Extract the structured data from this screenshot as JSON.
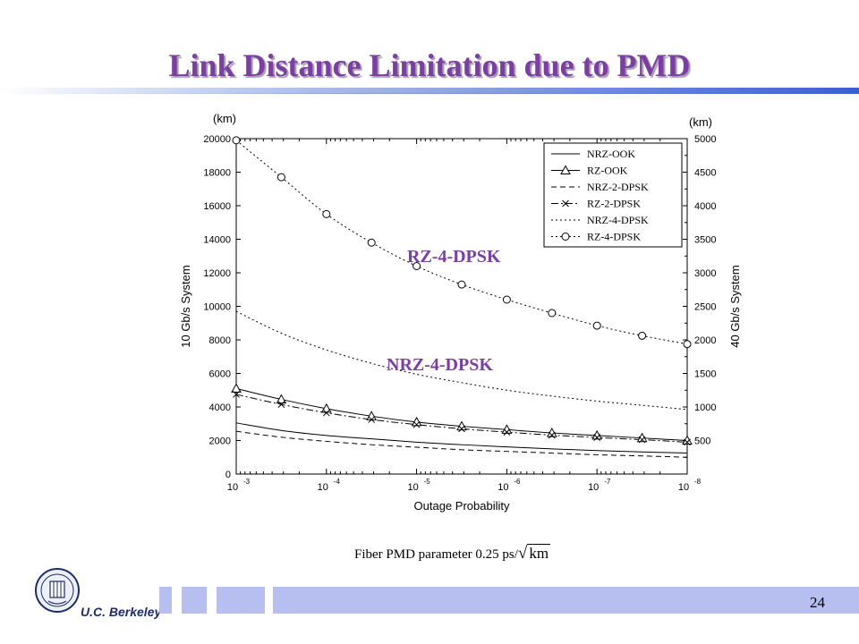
{
  "slide": {
    "title": "Link Distance Limitation due to PMD",
    "caption": "Fiber PMD parameter 0.25 ps/",
    "caption_sqrt": "km",
    "page_number": "24",
    "logo_text": "U.C. Berkeley"
  },
  "colors": {
    "title": "#7a3f9f",
    "accent": "#3a5fd0",
    "footer": "#b7bef0",
    "line": "#000000"
  },
  "chart_data": {
    "type": "line",
    "xlabel": "Outage Probability",
    "ylabel_left": "10 Gb/s System",
    "ylabel_right": "40 Gb/s System",
    "unit_left": "(km)",
    "unit_right": "(km)",
    "x_scale": "log",
    "x_exponents": [
      -3,
      -4,
      -5,
      -6,
      -7,
      -8
    ],
    "x_tick_base": "10",
    "ylim_left": [
      0,
      20000
    ],
    "ylim_right": [
      0,
      5000
    ],
    "y_ticks_left": [
      0,
      2000,
      4000,
      6000,
      8000,
      10000,
      12000,
      14000,
      16000,
      18000,
      20000
    ],
    "y_ticks_right": [
      500,
      1000,
      1500,
      2000,
      2500,
      3000,
      3500,
      4000,
      4500,
      5000
    ],
    "legend_position": "top-right",
    "x_exp": [
      -3,
      -3.5,
      -4,
      -4.5,
      -5,
      -5.5,
      -6,
      -6.5,
      -7,
      -7.5,
      -8
    ],
    "series": [
      {
        "name": "NRZ-OOK",
        "style": "solid",
        "marker": "none",
        "values": [
          3050,
          2600,
          2300,
          2100,
          1900,
          1750,
          1620,
          1500,
          1400,
          1320,
          1250
        ]
      },
      {
        "name": "RZ-OOK",
        "style": "solid",
        "marker": "triangle",
        "values": [
          5100,
          4450,
          3900,
          3450,
          3100,
          2850,
          2650,
          2450,
          2300,
          2150,
          2000
        ]
      },
      {
        "name": "NRZ-2-DPSK",
        "style": "dashed",
        "marker": "none",
        "values": [
          2550,
          2200,
          1950,
          1750,
          1600,
          1450,
          1350,
          1250,
          1150,
          1080,
          1000
        ]
      },
      {
        "name": "RZ-2-DPSK",
        "style": "dashdot",
        "marker": "x",
        "values": [
          4750,
          4150,
          3650,
          3250,
          2950,
          2700,
          2500,
          2320,
          2180,
          2050,
          1900
        ]
      },
      {
        "name": "NRZ-4-DPSK",
        "style": "dotted",
        "marker": "none",
        "values": [
          9700,
          8400,
          7400,
          6600,
          5950,
          5450,
          5000,
          4650,
          4350,
          4100,
          3850
        ]
      },
      {
        "name": "RZ-4-DPSK",
        "style": "dotted",
        "marker": "circle",
        "values": [
          19900,
          17700,
          15500,
          13800,
          12400,
          11300,
          10400,
          9600,
          8850,
          8250,
          7750
        ]
      }
    ],
    "annotations": [
      "RZ-4-DPSK",
      "NRZ-4-DPSK"
    ]
  }
}
